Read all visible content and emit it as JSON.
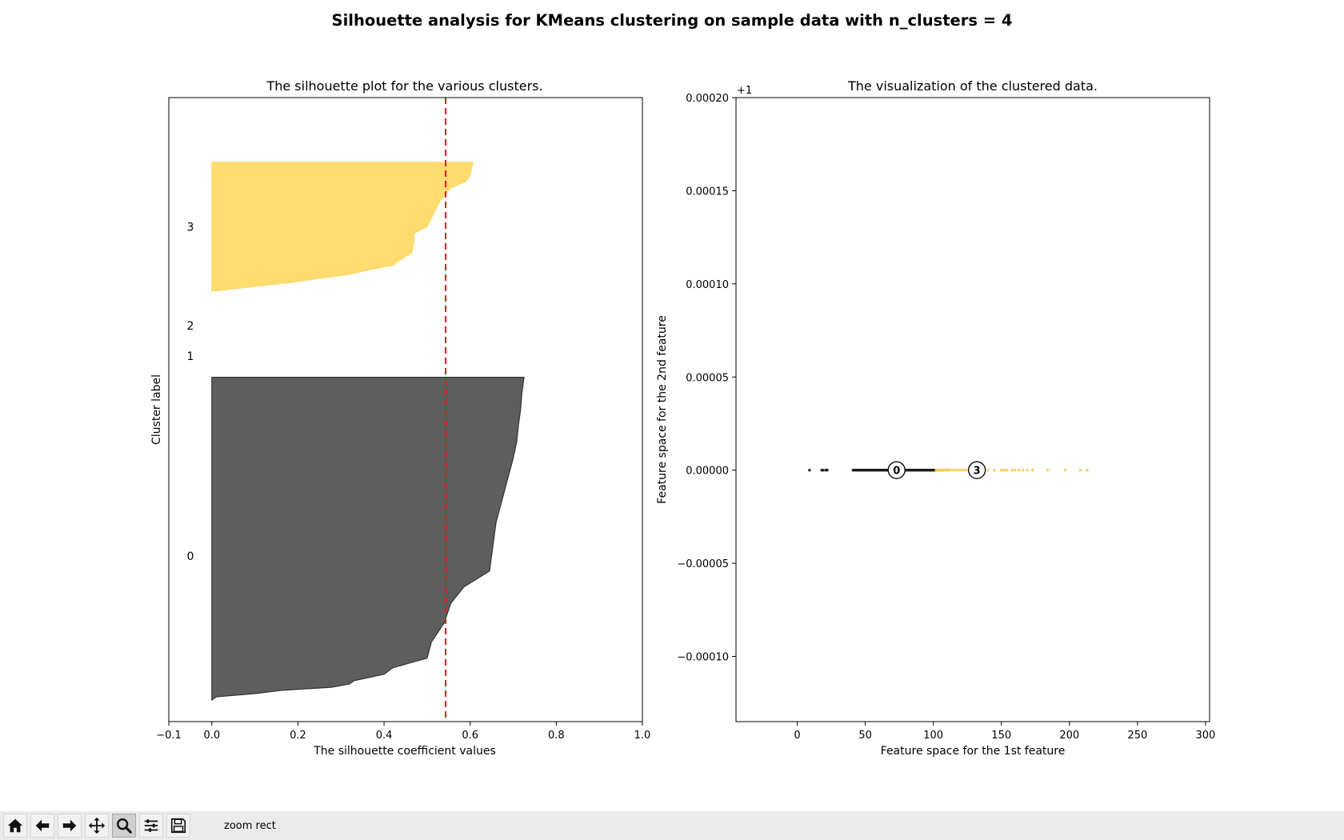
{
  "figure": {
    "suptitle": "Silhouette analysis for KMeans clustering on sample data with n_clusters = 4"
  },
  "toolbar": {
    "status": "zoom rect",
    "buttons": [
      {
        "icon": "home-icon"
      },
      {
        "icon": "back-arrow-icon"
      },
      {
        "icon": "forward-arrow-icon"
      },
      {
        "icon": "pan-icon"
      },
      {
        "icon": "zoom-icon"
      },
      {
        "icon": "configure-subplots-icon"
      },
      {
        "icon": "save-icon"
      }
    ]
  },
  "chart_data": [
    {
      "type": "area",
      "title": "The silhouette plot for the various clusters.",
      "xlabel": "The silhouette coefficient values",
      "ylabel": "Cluster label",
      "xlim": [
        -0.1,
        1.0
      ],
      "ylim": [
        0,
        290
      ],
      "xticks": [
        -0.1,
        0.0,
        0.2,
        0.4,
        0.6,
        0.8,
        1.0
      ],
      "xtick_labels": [
        "−0.1",
        "0.0",
        "0.2",
        "0.4",
        "0.6",
        "0.8",
        "1.0"
      ],
      "silhouette_avg": 0.543,
      "avg_line_color": "#e31a1c",
      "clusters": [
        {
          "label": "0",
          "color": "#5e5e5e",
          "y_lower": 10,
          "y_upper": 160,
          "label_y": 77,
          "profile": [
            [
              0,
              0.0
            ],
            [
              0.01,
              0.01
            ],
            [
              0.02,
              0.1
            ],
            [
              0.03,
              0.16
            ],
            [
              0.04,
              0.28
            ],
            [
              0.05,
              0.32
            ],
            [
              0.06,
              0.33
            ],
            [
              0.08,
              0.4
            ],
            [
              0.1,
              0.42
            ],
            [
              0.13,
              0.5
            ],
            [
              0.18,
              0.51
            ],
            [
              0.24,
              0.54
            ],
            [
              0.3,
              0.555
            ],
            [
              0.35,
              0.585
            ],
            [
              0.4,
              0.645
            ],
            [
              0.45,
              0.65
            ],
            [
              0.5,
              0.655
            ],
            [
              0.55,
              0.66
            ],
            [
              0.6,
              0.67
            ],
            [
              0.65,
              0.68
            ],
            [
              0.7,
              0.69
            ],
            [
              0.75,
              0.7
            ],
            [
              0.8,
              0.708
            ],
            [
              0.85,
              0.712
            ],
            [
              0.9,
              0.717
            ],
            [
              0.95,
              0.72
            ],
            [
              1.0,
              0.725
            ]
          ]
        },
        {
          "label": "1",
          "color": "#2a4e8c",
          "y_lower": 170,
          "y_upper": 170,
          "label_y": 170,
          "profile": []
        },
        {
          "label": "2",
          "color": "#3fbf9b",
          "y_lower": 180,
          "y_upper": 180,
          "label_y": 184,
          "profile": []
        },
        {
          "label": "3",
          "color": "#ffdb70",
          "y_lower": 200,
          "y_upper": 260,
          "label_y": 230,
          "profile": [
            [
              0,
              0.0
            ],
            [
              0.03,
              0.08
            ],
            [
              0.07,
              0.19
            ],
            [
              0.1,
              0.25
            ],
            [
              0.13,
              0.32
            ],
            [
              0.17,
              0.37
            ],
            [
              0.2,
              0.42
            ],
            [
              0.27,
              0.45
            ],
            [
              0.3,
              0.465
            ],
            [
              0.4,
              0.47
            ],
            [
              0.45,
              0.47
            ],
            [
              0.5,
              0.5
            ],
            [
              0.6,
              0.515
            ],
            [
              0.7,
              0.53
            ],
            [
              0.8,
              0.555
            ],
            [
              0.85,
              0.59
            ],
            [
              0.9,
              0.6
            ],
            [
              0.95,
              0.603
            ],
            [
              1.0,
              0.607
            ]
          ]
        }
      ]
    },
    {
      "type": "scatter",
      "title": "The visualization of the clustered data.",
      "xlabel": "Feature space for the 1st feature",
      "ylabel": "Feature space for the 2nd feature",
      "xlim": [
        -45,
        303
      ],
      "ylim": [
        -0.000135,
        0.0002
      ],
      "y_offset_text": "+1",
      "xticks": [
        0,
        50,
        100,
        150,
        200,
        250,
        300
      ],
      "xtick_labels": [
        "0",
        "50",
        "100",
        "150",
        "200",
        "250",
        "300"
      ],
      "yticks": [
        -0.0001,
        -5e-05,
        0.0,
        5e-05,
        0.0001,
        0.00015,
        0.0002
      ],
      "ytick_labels": [
        "−0.00010",
        "−0.00005",
        "0.00000",
        "0.00005",
        "0.00010",
        "0.00015",
        "0.00020"
      ],
      "series": [
        {
          "cluster": "0",
          "color": "#111111",
          "x": [
            9,
            18,
            19,
            21,
            22,
            41,
            42,
            43,
            44,
            45,
            46,
            47,
            48,
            49,
            50,
            51,
            52,
            53,
            54,
            55,
            56,
            57,
            58,
            59,
            60,
            61,
            62,
            63,
            64,
            65,
            66,
            67,
            68,
            69,
            70,
            71,
            72,
            74,
            76,
            78,
            79,
            80,
            81,
            82,
            83,
            84,
            85,
            86,
            87,
            88,
            89,
            90,
            91,
            92,
            93,
            94,
            95,
            96,
            97,
            98,
            99,
            100,
            101
          ],
          "y": 0
        },
        {
          "cluster": "3",
          "color": "#f7c948",
          "x": [
            102,
            103,
            104,
            105,
            106,
            107,
            108,
            109,
            110,
            111,
            112,
            114,
            116,
            118,
            120,
            122,
            124,
            126,
            128,
            130,
            140,
            145,
            150,
            152,
            154,
            158,
            160,
            163,
            166,
            169,
            173,
            184,
            197,
            208,
            213
          ],
          "y": 0
        }
      ],
      "centers": [
        {
          "label": "0",
          "x": 73,
          "y": 0
        },
        {
          "label": "3",
          "x": 132,
          "y": 0
        }
      ]
    }
  ]
}
